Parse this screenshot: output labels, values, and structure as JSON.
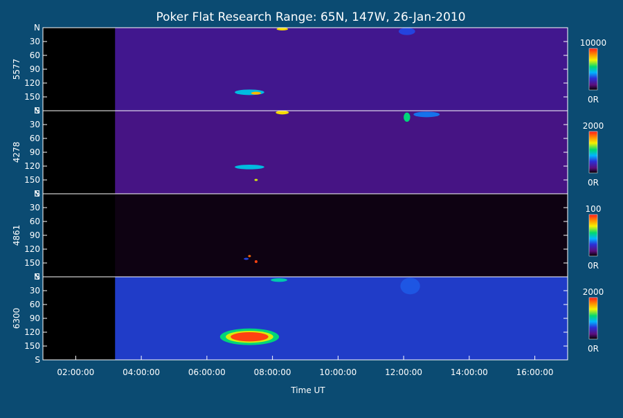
{
  "chart_data": {
    "type": "heatmap",
    "title": "Poker Flat Research Range: 65N, 147W, 26-Jan-2010",
    "xlabel": "Time UT",
    "x_ticks": [
      "02:00:00",
      "04:00:00",
      "06:00:00",
      "08:00:00",
      "10:00:00",
      "12:00:00",
      "14:00:00",
      "16:00:00"
    ],
    "x_range_hours": [
      1.0,
      17.0
    ],
    "data_start_hour": 3.2,
    "y_ticks": [
      "N",
      "30",
      "60",
      "90",
      "120",
      "150",
      "S"
    ],
    "y_range": [
      0,
      180
    ],
    "panels": [
      {
        "id": "p5577",
        "ylabel": "5577",
        "cbar_max": "10000",
        "cbar_min": "0R",
        "background_intensity": 0.18,
        "features": [
          {
            "t": 8.3,
            "y": 3,
            "w": 0.35,
            "h": 3,
            "v": 0.75
          },
          {
            "t": 12.1,
            "y": 8,
            "w": 0.5,
            "h": 8,
            "v": 0.3
          },
          {
            "t": 7.3,
            "y": 140,
            "w": 0.9,
            "h": 6,
            "v": 0.45
          },
          {
            "t": 7.5,
            "y": 142,
            "w": 0.3,
            "h": 3,
            "v": 0.8
          }
        ]
      },
      {
        "id": "p4278",
        "ylabel": "4278",
        "cbar_max": "2000",
        "cbar_min": "0R",
        "background_intensity": 0.16,
        "features": [
          {
            "t": 8.3,
            "y": 4,
            "w": 0.4,
            "h": 4,
            "v": 0.75
          },
          {
            "t": 12.1,
            "y": 14,
            "w": 0.2,
            "h": 10,
            "v": 0.55
          },
          {
            "t": 12.7,
            "y": 8,
            "w": 0.8,
            "h": 6,
            "v": 0.35
          },
          {
            "t": 7.3,
            "y": 122,
            "w": 0.9,
            "h": 5,
            "v": 0.45
          },
          {
            "t": 7.5,
            "y": 150,
            "w": 0.1,
            "h": 2,
            "v": 0.7
          }
        ]
      },
      {
        "id": "p4861",
        "ylabel": "4861",
        "cbar_max": "100",
        "cbar_min": "0R",
        "background_intensity": 0.02,
        "features": [
          {
            "t": 7.5,
            "y": 147,
            "w": 0.08,
            "h": 3,
            "v": 0.95
          },
          {
            "t": 7.3,
            "y": 135,
            "w": 0.08,
            "h": 2,
            "v": 0.9
          },
          {
            "t": 7.2,
            "y": 141,
            "w": 0.15,
            "h": 2,
            "v": 0.3
          }
        ]
      },
      {
        "id": "p6300",
        "ylabel": "6300",
        "cbar_max": "2000",
        "cbar_min": "0R",
        "background_intensity": 0.3,
        "features": [
          {
            "t": 8.2,
            "y": 7,
            "w": 0.5,
            "h": 4,
            "v": 0.5
          },
          {
            "t": 12.2,
            "y": 20,
            "w": 0.6,
            "h": 18,
            "v": 0.32
          },
          {
            "t": 7.3,
            "y": 130,
            "w": 1.8,
            "h": 18,
            "v": 0.55
          },
          {
            "t": 7.3,
            "y": 130,
            "w": 1.45,
            "h": 13,
            "v": 0.7
          },
          {
            "t": 7.3,
            "y": 130,
            "w": 1.15,
            "h": 10,
            "v": 0.95
          }
        ]
      }
    ]
  }
}
